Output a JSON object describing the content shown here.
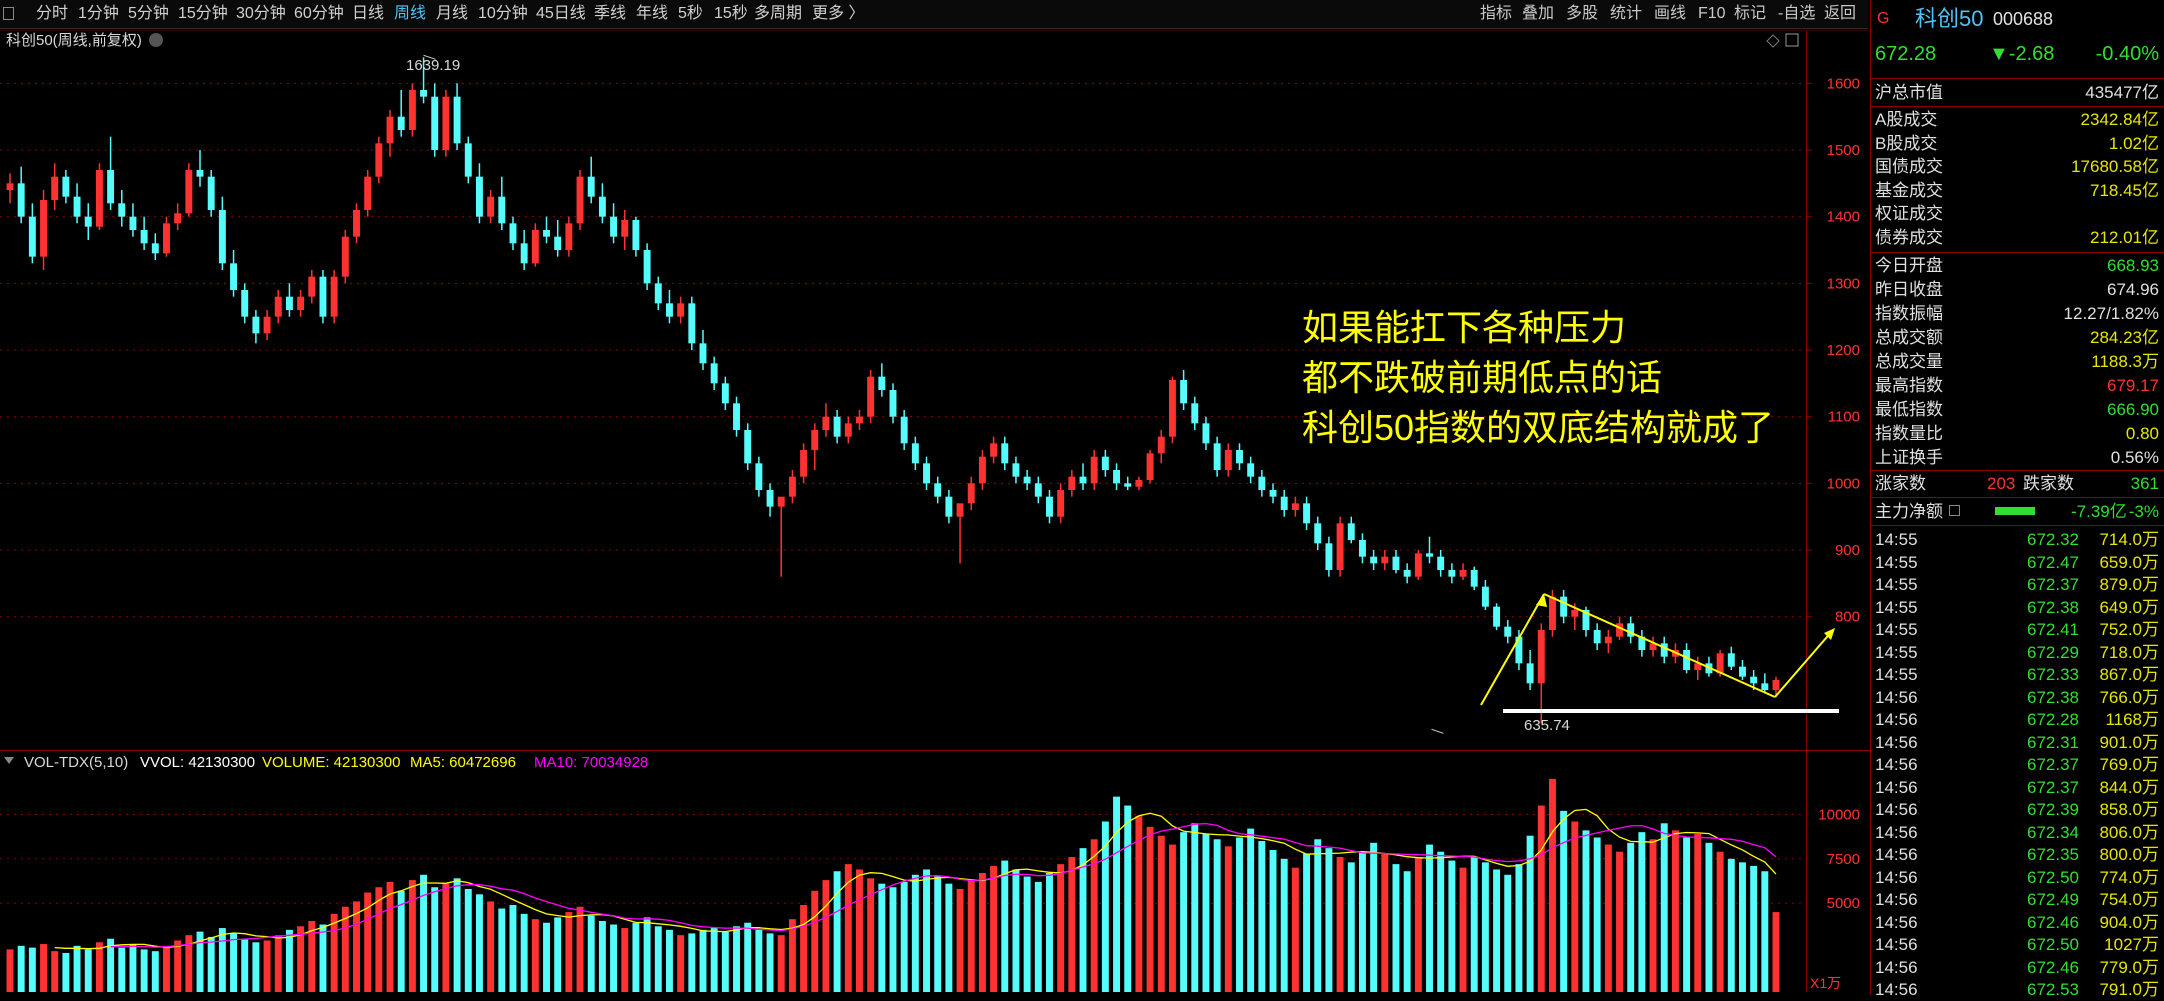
{
  "toolbar": {
    "periods": [
      "分时",
      "1分钟",
      "5分钟",
      "15分钟",
      "30分钟",
      "60分钟",
      "日线",
      "周线",
      "月线",
      "10分钟",
      "45日线",
      "季线",
      "年线",
      "5秒",
      "15秒",
      "多周期",
      "更多 〉"
    ],
    "active_period": "周线",
    "right_buttons": [
      "指标",
      "叠加",
      "多股",
      "统计",
      "画线",
      "F10",
      "标记",
      "-自选",
      "返回"
    ]
  },
  "main_chart": {
    "title": "科创50(周线,前复权)",
    "high_label": "1639.19",
    "low_label": "635.74",
    "annotation_lines": [
      "如果能扛下各种压力",
      "都不跌破前期低点的话",
      "科创50指数的双底结构就成了"
    ]
  },
  "volume_panel": {
    "indicator": "VOL-TDX(5,10)",
    "vvol": "VVOL: 42130300",
    "volume": "VOLUME: 42130300",
    "ma5": "MA5: 60472696",
    "ma10": "MA10: 70034928",
    "unit": "X1万"
  },
  "colors": {
    "up": "#ff3232",
    "down": "#54fcfc",
    "ma5": "#ffff00",
    "ma10": "#ff00ff",
    "grid": "#8b0000",
    "annotation": "#ffff00"
  },
  "chart_data": {
    "type": "candlestick",
    "price_axis": {
      "ticks": [
        800.0,
        900.0,
        1000,
        1100,
        1200,
        1300,
        1400,
        1500,
        1600
      ],
      "ylim": [
        612,
        1665
      ]
    },
    "volume_axis": {
      "ticks": [
        5000,
        7500,
        10000
      ],
      "ylim": [
        0,
        12500
      ]
    },
    "ohlc_weeks": [
      [
        1440,
        1465,
        1420,
        1450
      ],
      [
        1450,
        1475,
        1390,
        1400
      ],
      [
        1400,
        1420,
        1330,
        1340
      ],
      [
        1340,
        1440,
        1320,
        1425
      ],
      [
        1425,
        1480,
        1410,
        1460
      ],
      [
        1460,
        1470,
        1420,
        1430
      ],
      [
        1430,
        1450,
        1390,
        1400
      ],
      [
        1400,
        1420,
        1365,
        1385
      ],
      [
        1385,
        1480,
        1380,
        1470
      ],
      [
        1470,
        1520,
        1410,
        1420
      ],
      [
        1420,
        1440,
        1385,
        1400
      ],
      [
        1400,
        1420,
        1370,
        1380
      ],
      [
        1380,
        1400,
        1350,
        1360
      ],
      [
        1360,
        1375,
        1335,
        1345
      ],
      [
        1345,
        1400,
        1340,
        1390
      ],
      [
        1390,
        1420,
        1380,
        1405
      ],
      [
        1405,
        1480,
        1400,
        1470
      ],
      [
        1470,
        1500,
        1445,
        1460
      ],
      [
        1460,
        1470,
        1400,
        1410
      ],
      [
        1410,
        1430,
        1320,
        1330
      ],
      [
        1330,
        1350,
        1280,
        1290
      ],
      [
        1290,
        1300,
        1240,
        1250
      ],
      [
        1250,
        1260,
        1210,
        1225
      ],
      [
        1225,
        1260,
        1215,
        1250
      ],
      [
        1250,
        1290,
        1240,
        1280
      ],
      [
        1280,
        1300,
        1250,
        1260
      ],
      [
        1260,
        1290,
        1250,
        1280
      ],
      [
        1280,
        1320,
        1270,
        1310
      ],
      [
        1310,
        1320,
        1240,
        1250
      ],
      [
        1250,
        1320,
        1240,
        1310
      ],
      [
        1310,
        1380,
        1300,
        1370
      ],
      [
        1370,
        1420,
        1360,
        1410
      ],
      [
        1410,
        1470,
        1400,
        1460
      ],
      [
        1460,
        1520,
        1450,
        1510
      ],
      [
        1510,
        1560,
        1490,
        1550
      ],
      [
        1550,
        1590,
        1520,
        1530
      ],
      [
        1530,
        1600,
        1520,
        1590
      ],
      [
        1590,
        1639,
        1570,
        1580
      ],
      [
        1580,
        1600,
        1490,
        1500
      ],
      [
        1500,
        1590,
        1490,
        1580
      ],
      [
        1580,
        1600,
        1500,
        1510
      ],
      [
        1510,
        1520,
        1450,
        1460
      ],
      [
        1460,
        1480,
        1390,
        1400
      ],
      [
        1400,
        1440,
        1390,
        1430
      ],
      [
        1430,
        1460,
        1380,
        1390
      ],
      [
        1390,
        1400,
        1350,
        1360
      ],
      [
        1360,
        1380,
        1320,
        1330
      ],
      [
        1330,
        1390,
        1325,
        1380
      ],
      [
        1380,
        1400,
        1360,
        1370
      ],
      [
        1370,
        1395,
        1340,
        1350
      ],
      [
        1350,
        1400,
        1340,
        1390
      ],
      [
        1390,
        1470,
        1380,
        1460
      ],
      [
        1460,
        1490,
        1420,
        1430
      ],
      [
        1430,
        1450,
        1390,
        1400
      ],
      [
        1400,
        1420,
        1360,
        1370
      ],
      [
        1370,
        1410,
        1350,
        1395
      ],
      [
        1395,
        1400,
        1340,
        1350
      ],
      [
        1350,
        1360,
        1290,
        1300
      ],
      [
        1300,
        1310,
        1260,
        1270
      ],
      [
        1270,
        1290,
        1240,
        1250
      ],
      [
        1250,
        1280,
        1240,
        1270
      ],
      [
        1270,
        1280,
        1200,
        1210
      ],
      [
        1210,
        1230,
        1170,
        1180
      ],
      [
        1180,
        1190,
        1140,
        1150
      ],
      [
        1150,
        1160,
        1110,
        1120
      ],
      [
        1120,
        1130,
        1070,
        1080
      ],
      [
        1080,
        1090,
        1020,
        1030
      ],
      [
        1030,
        1040,
        980,
        990
      ],
      [
        990,
        1000,
        950,
        965
      ],
      [
        965,
        975,
        860,
        980
      ],
      [
        980,
        1020,
        970,
        1010
      ],
      [
        1010,
        1060,
        1000,
        1050
      ],
      [
        1050,
        1090,
        1020,
        1080
      ],
      [
        1080,
        1120,
        1070,
        1100
      ],
      [
        1100,
        1110,
        1060,
        1070
      ],
      [
        1070,
        1100,
        1060,
        1090
      ],
      [
        1090,
        1110,
        1080,
        1100
      ],
      [
        1100,
        1170,
        1090,
        1160
      ],
      [
        1160,
        1180,
        1130,
        1140
      ],
      [
        1140,
        1150,
        1090,
        1100
      ],
      [
        1100,
        1110,
        1050,
        1060
      ],
      [
        1060,
        1070,
        1020,
        1030
      ],
      [
        1030,
        1040,
        990,
        1000
      ],
      [
        1000,
        1010,
        970,
        980
      ],
      [
        980,
        990,
        940,
        950
      ],
      [
        950,
        960,
        880,
        970
      ],
      [
        970,
        1010,
        960,
        1000
      ],
      [
        1000,
        1050,
        990,
        1040
      ],
      [
        1040,
        1070,
        1030,
        1060
      ],
      [
        1060,
        1070,
        1020,
        1030
      ],
      [
        1030,
        1040,
        1000,
        1010
      ],
      [
        1010,
        1020,
        990,
        1000
      ],
      [
        1000,
        1010,
        970,
        980
      ],
      [
        980,
        990,
        940,
        950
      ],
      [
        950,
        1000,
        940,
        990
      ],
      [
        990,
        1020,
        980,
        1010
      ],
      [
        1010,
        1030,
        990,
        1000
      ],
      [
        1000,
        1050,
        990,
        1040
      ],
      [
        1040,
        1050,
        1010,
        1020
      ],
      [
        1020,
        1030,
        990,
        1000
      ],
      [
        1000,
        1010,
        990,
        995
      ],
      [
        995,
        1010,
        990,
        1005
      ],
      [
        1005,
        1050,
        1000,
        1045
      ],
      [
        1045,
        1080,
        1030,
        1070
      ],
      [
        1070,
        1160,
        1060,
        1155
      ],
      [
        1155,
        1170,
        1110,
        1120
      ],
      [
        1120,
        1130,
        1080,
        1090
      ],
      [
        1090,
        1100,
        1050,
        1060
      ],
      [
        1060,
        1070,
        1010,
        1020
      ],
      [
        1020,
        1060,
        1010,
        1050
      ],
      [
        1050,
        1060,
        1020,
        1030
      ],
      [
        1030,
        1040,
        1000,
        1010
      ],
      [
        1010,
        1020,
        980,
        990
      ],
      [
        990,
        1000,
        970,
        980
      ],
      [
        980,
        990,
        950,
        960
      ],
      [
        960,
        980,
        950,
        970
      ],
      [
        970,
        980,
        930,
        940
      ],
      [
        940,
        950,
        900,
        910
      ],
      [
        910,
        920,
        860,
        870
      ],
      [
        870,
        950,
        860,
        940
      ],
      [
        940,
        950,
        910,
        915
      ],
      [
        915,
        925,
        880,
        890
      ],
      [
        890,
        900,
        870,
        880
      ],
      [
        880,
        900,
        870,
        890
      ],
      [
        890,
        900,
        865,
        870
      ],
      [
        870,
        880,
        850,
        860
      ],
      [
        860,
        900,
        855,
        895
      ],
      [
        895,
        920,
        880,
        890
      ],
      [
        890,
        900,
        860,
        870
      ],
      [
        870,
        880,
        850,
        860
      ],
      [
        860,
        880,
        855,
        870
      ],
      [
        870,
        875,
        840,
        845
      ],
      [
        845,
        855,
        810,
        815
      ],
      [
        815,
        820,
        780,
        785
      ],
      [
        785,
        795,
        760,
        770
      ],
      [
        770,
        780,
        720,
        730
      ],
      [
        730,
        750,
        690,
        700
      ],
      [
        700,
        790,
        640,
        780
      ],
      [
        780,
        840,
        770,
        830
      ],
      [
        830,
        840,
        790,
        800
      ],
      [
        800,
        820,
        780,
        810
      ],
      [
        810,
        815,
        770,
        780
      ],
      [
        780,
        790,
        750,
        760
      ],
      [
        760,
        780,
        745,
        770
      ],
      [
        770,
        800,
        765,
        790
      ],
      [
        790,
        800,
        760,
        770
      ],
      [
        770,
        780,
        740,
        750
      ],
      [
        750,
        770,
        740,
        760
      ],
      [
        760,
        770,
        730,
        740
      ],
      [
        740,
        760,
        730,
        750
      ],
      [
        750,
        760,
        715,
        720
      ],
      [
        720,
        740,
        705,
        730
      ],
      [
        730,
        740,
        710,
        715
      ],
      [
        715,
        750,
        710,
        745
      ],
      [
        745,
        755,
        720,
        725
      ],
      [
        725,
        735,
        705,
        710
      ],
      [
        710,
        720,
        690,
        700
      ],
      [
        700,
        715,
        685,
        690
      ],
      [
        690,
        710,
        680,
        705
      ]
    ],
    "volume_weeks": [
      2400,
      2600,
      2500,
      2700,
      2300,
      2200,
      2600,
      2400,
      2800,
      3000,
      2500,
      2700,
      2400,
      2300,
      2600,
      2900,
      3200,
      3400,
      3100,
      3600,
      3300,
      3000,
      2800,
      2900,
      3200,
      3500,
      3700,
      4000,
      3800,
      4400,
      4800,
      5100,
      5600,
      5900,
      6200,
      5700,
      6300,
      6600,
      5900,
      6100,
      6400,
      5800,
      5500,
      5100,
      4700,
      4900,
      4400,
      4100,
      3900,
      4200,
      4500,
      4800,
      4300,
      4000,
      3800,
      3600,
      3900,
      4200,
      3700,
      3500,
      3200,
      3300,
      3500,
      3600,
      3400,
      3700,
      3900,
      3500,
      3300,
      3200,
      4100,
      4900,
      5700,
      6300,
      6800,
      7200,
      6900,
      6400,
      6100,
      5900,
      6200,
      6600,
      6900,
      6500,
      6100,
      5800,
      6300,
      6700,
      7100,
      7400,
      6900,
      6500,
      6200,
      6700,
      7200,
      7600,
      8100,
      8600,
      9600,
      11000,
      10500,
      9900,
      9300,
      8800,
      8300,
      9000,
      9500,
      8900,
      8600,
      8200,
      8700,
      9200,
      8500,
      8000,
      7500,
      7000,
      7800,
      8600,
      8100,
      7600,
      7300,
      7900,
      8400,
      7800,
      7200,
      6800,
      7600,
      8300,
      7900,
      7400,
      7000,
      7600,
      7300,
      6900,
      6600,
      7200,
      8800,
      10500,
      12000,
      10200,
      9600,
      9100,
      8700,
      8300,
      7900,
      8400,
      9000,
      8600,
      9500,
      9100,
      8700,
      8900,
      8400,
      7900,
      7500,
      7300,
      7100,
      6800,
      4500
    ]
  },
  "quote": {
    "name": "科创50",
    "code": "000688",
    "price": "672.28",
    "change": "▼-2.68",
    "pct": "-0.40%",
    "market_cap_label": "沪总市值",
    "market_cap": "435477亿",
    "stats": [
      {
        "label": "A股成交",
        "value": "2342.84亿",
        "color": "#e6e600"
      },
      {
        "label": "B股成交",
        "value": "1.02亿",
        "color": "#e6e600"
      },
      {
        "label": "国债成交",
        "value": "17680.58亿",
        "color": "#e6e600"
      },
      {
        "label": "基金成交",
        "value": "718.45亿",
        "color": "#e6e600"
      },
      {
        "label": "权证成交",
        "value": "",
        "color": "#e6e600"
      },
      {
        "label": "债券成交",
        "value": "212.01亿",
        "color": "#e6e600"
      }
    ],
    "stats2": [
      {
        "label": "今日开盘",
        "value": "668.93",
        "color": "#33dd33"
      },
      {
        "label": "昨日收盘",
        "value": "674.96",
        "color": "#e0e0e0"
      },
      {
        "label": "指数振幅",
        "value": "12.27/1.82%",
        "color": "#e0e0e0"
      },
      {
        "label": "总成交额",
        "value": "284.23亿",
        "color": "#e6e600"
      },
      {
        "label": "总成交量",
        "value": "1188.3万",
        "color": "#e6e600"
      },
      {
        "label": "最高指数",
        "value": "679.17",
        "color": "#ff3232"
      },
      {
        "label": "最低指数",
        "value": "666.90",
        "color": "#33dd33"
      },
      {
        "label": "指数量比",
        "value": "0.80",
        "color": "#e6e600"
      },
      {
        "label": "上证换手",
        "value": "0.56%",
        "color": "#e0e0e0"
      }
    ],
    "up_label": "涨家数",
    "up_count": "203",
    "down_label": "跌家数",
    "down_count": "361",
    "net_label": "主力净额",
    "net_value": "-7.39亿",
    "net_pct": "-3%",
    "ticks": [
      [
        "14:55",
        "672.32",
        "714.0万"
      ],
      [
        "14:55",
        "672.47",
        "659.0万"
      ],
      [
        "14:55",
        "672.37",
        "879.0万"
      ],
      [
        "14:55",
        "672.38",
        "649.0万"
      ],
      [
        "14:55",
        "672.41",
        "752.0万"
      ],
      [
        "14:55",
        "672.29",
        "718.0万"
      ],
      [
        "14:55",
        "672.33",
        "867.0万"
      ],
      [
        "14:56",
        "672.38",
        "766.0万"
      ],
      [
        "14:56",
        "672.28",
        "1168万"
      ],
      [
        "14:56",
        "672.31",
        "901.0万"
      ],
      [
        "14:56",
        "672.37",
        "769.0万"
      ],
      [
        "14:56",
        "672.37",
        "844.0万"
      ],
      [
        "14:56",
        "672.39",
        "858.0万"
      ],
      [
        "14:56",
        "672.34",
        "806.0万"
      ],
      [
        "14:56",
        "672.35",
        "800.0万"
      ],
      [
        "14:56",
        "672.50",
        "774.0万"
      ],
      [
        "14:56",
        "672.49",
        "754.0万"
      ],
      [
        "14:56",
        "672.46",
        "904.0万"
      ],
      [
        "14:56",
        "672.50",
        "1027万"
      ],
      [
        "14:56",
        "672.46",
        "779.0万"
      ],
      [
        "14:56",
        "672.53",
        "791.0万"
      ]
    ]
  }
}
